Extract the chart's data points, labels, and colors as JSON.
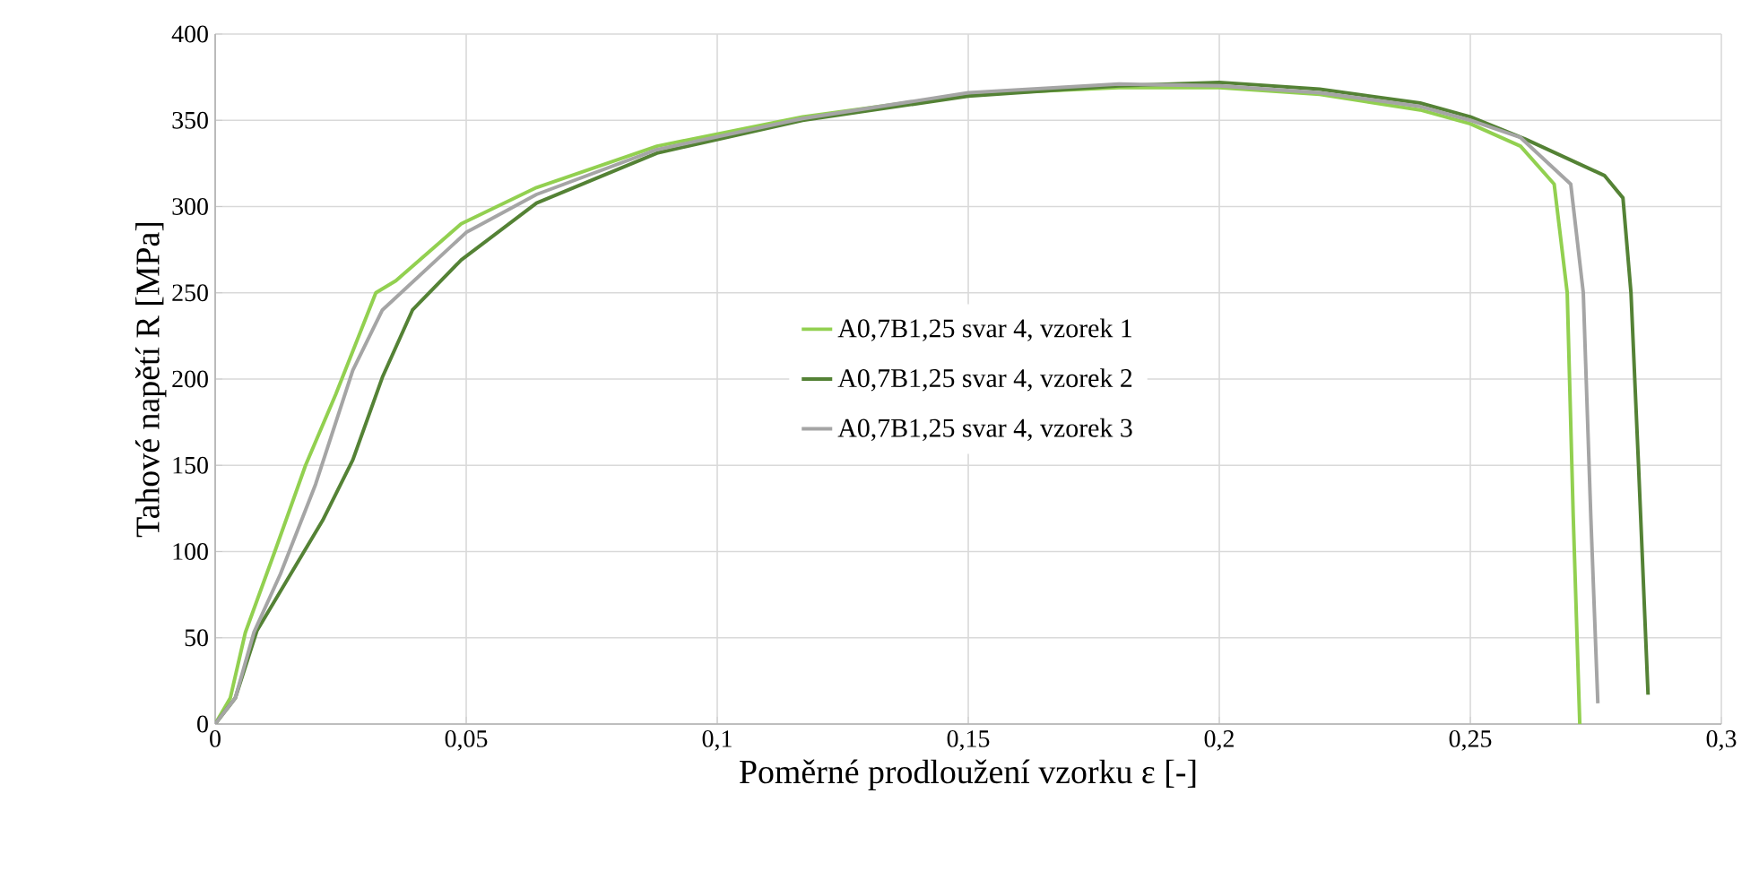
{
  "chart_data": {
    "type": "line",
    "xlabel": "Poměrné prodloužení vzorku ε [-]",
    "ylabel": "Tahové napětí R [MPa]",
    "xlim": [
      0,
      0.3
    ],
    "ylim": [
      0,
      400
    ],
    "xticks": [
      0,
      {
        "value": 0.05,
        "label": "0,05"
      },
      {
        "value": 0.1,
        "label": "0,1"
      },
      {
        "value": 0.15,
        "label": "0,15"
      },
      {
        "value": 0.2,
        "label": "0,2"
      },
      {
        "value": 0.25,
        "label": "0,25"
      },
      {
        "value": 0.3,
        "label": "0,3"
      }
    ],
    "yticks": [
      0,
      50,
      100,
      150,
      200,
      250,
      300,
      350,
      400
    ],
    "grid": true,
    "legend": "center",
    "line_style": "solid",
    "marker": "none",
    "series": [
      {
        "name": "A0,7B1,25 svar 4, vzorek 1",
        "color": "#92d050",
        "x": [
          0,
          0.003,
          0.006,
          0.012,
          0.018,
          0.024,
          0.032,
          0.036,
          0.049,
          0.064,
          0.088,
          0.117,
          0.15,
          0.18,
          0.2,
          0.22,
          0.24,
          0.25,
          0.26,
          0.2667,
          0.2693,
          0.2705,
          0.2718
        ],
        "values": [
          0,
          15,
          53,
          101,
          150,
          191,
          250,
          257,
          290,
          311,
          335,
          352,
          365,
          369,
          369,
          365,
          356,
          348,
          335,
          313,
          250,
          120,
          0
        ]
      },
      {
        "name": "A0,7B1,25 svar 4, vzorek 2",
        "color": "#548235",
        "x": [
          0,
          0.004,
          0.0083,
          0.0214,
          0.0274,
          0.0333,
          0.0393,
          0.049,
          0.064,
          0.088,
          0.117,
          0.15,
          0.18,
          0.2,
          0.22,
          0.24,
          0.25,
          0.261,
          0.2767,
          0.2804,
          0.282,
          0.2835,
          0.2854
        ],
        "values": [
          0,
          15,
          54,
          118,
          153,
          201,
          240,
          269,
          302,
          331,
          350,
          364,
          370,
          372,
          368,
          360,
          352,
          339,
          318,
          305,
          250,
          150,
          17
        ]
      },
      {
        "name": "A0,7B1,25 svar 4, vzorek 3",
        "color": "#a5a5a5",
        "x": [
          0,
          0.004,
          0.0077,
          0.013,
          0.02,
          0.0274,
          0.0333,
          0.05,
          0.064,
          0.088,
          0.117,
          0.15,
          0.18,
          0.2,
          0.22,
          0.24,
          0.25,
          0.26,
          0.27,
          0.2725,
          0.274,
          0.2754
        ],
        "values": [
          0,
          15,
          53,
          87,
          139,
          205,
          240,
          285,
          307,
          333,
          351,
          366,
          371,
          370,
          366,
          358,
          350,
          340,
          313,
          250,
          120,
          12
        ]
      }
    ]
  }
}
